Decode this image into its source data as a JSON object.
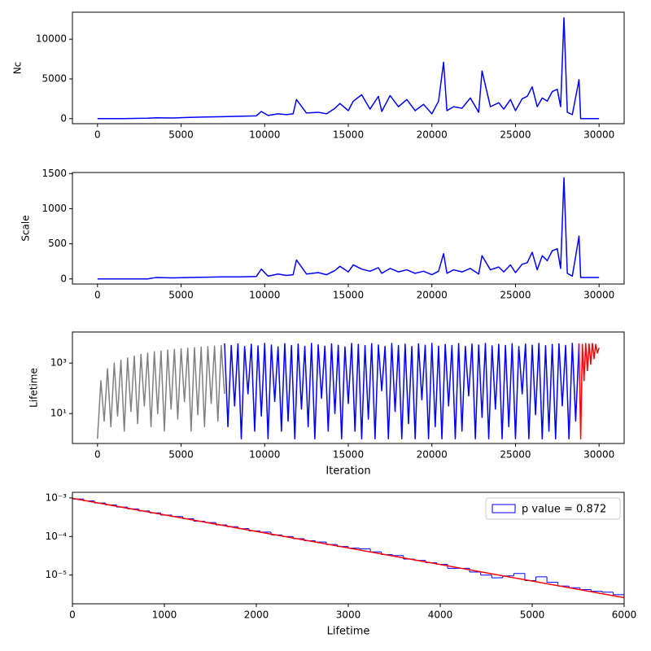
{
  "chart_data": [
    {
      "type": "line",
      "ylabel": "Nc",
      "x": [
        0,
        1500,
        3000,
        3500,
        4500,
        5500,
        6500,
        7500,
        8500,
        9500,
        9800,
        10200,
        10800,
        11300,
        11700,
        11900,
        12500,
        13200,
        13700,
        14200,
        14500,
        15000,
        15300,
        15800,
        16300,
        16800,
        17000,
        17500,
        18000,
        18500,
        19000,
        19500,
        20000,
        20400,
        20700,
        20900,
        21300,
        21800,
        22300,
        22800,
        23000,
        23500,
        24000,
        24300,
        24700,
        25000,
        25400,
        25700,
        26000,
        26300,
        26600,
        26900,
        27200,
        27500,
        27700,
        27900,
        28100,
        28400,
        28800,
        28900,
        29200,
        30000
      ],
      "series": [
        {
          "color": "#0000ff",
          "values": [
            0,
            0,
            50,
            100,
            80,
            150,
            200,
            250,
            300,
            350,
            900,
            400,
            600,
            500,
            600,
            2400,
            700,
            800,
            600,
            1300,
            1900,
            1000,
            2200,
            3000,
            1200,
            2800,
            900,
            2900,
            1500,
            2400,
            1000,
            1800,
            600,
            2200,
            7100,
            1000,
            1500,
            1300,
            2600,
            800,
            6000,
            1500,
            2000,
            1200,
            2400,
            1000,
            2500,
            2800,
            4000,
            1500,
            2600,
            2200,
            3400,
            3700,
            1500,
            12700,
            800,
            500,
            4900,
            0,
            0,
            0
          ]
        }
      ],
      "xlim": [
        -1500,
        31500
      ],
      "xticks": [
        0,
        5000,
        10000,
        15000,
        20000,
        25000,
        30000
      ],
      "ylim": [
        -640,
        13400
      ],
      "yticks": [
        0,
        5000,
        10000
      ]
    },
    {
      "type": "line",
      "ylabel": "Scale",
      "x": [
        0,
        1500,
        3000,
        3500,
        4500,
        5500,
        6500,
        7500,
        8500,
        9500,
        9800,
        10200,
        10800,
        11300,
        11700,
        11900,
        12500,
        13200,
        13700,
        14200,
        14500,
        15000,
        15300,
        15800,
        16300,
        16800,
        17000,
        17500,
        18000,
        18500,
        19000,
        19500,
        20000,
        20400,
        20700,
        20900,
        21300,
        21800,
        22300,
        22800,
        23000,
        23500,
        24000,
        24300,
        24700,
        25000,
        25400,
        25700,
        26000,
        26300,
        26600,
        26900,
        27200,
        27500,
        27700,
        27900,
        28100,
        28400,
        28800,
        28900,
        29200,
        30000
      ],
      "series": [
        {
          "color": "#0000ff",
          "values": [
            0,
            0,
            0,
            20,
            15,
            20,
            25,
            30,
            30,
            35,
            140,
            40,
            70,
            50,
            60,
            270,
            70,
            90,
            60,
            120,
            180,
            100,
            200,
            140,
            110,
            160,
            80,
            150,
            100,
            130,
            80,
            110,
            60,
            110,
            360,
            80,
            130,
            100,
            150,
            70,
            330,
            130,
            170,
            100,
            200,
            90,
            210,
            230,
            380,
            130,
            330,
            260,
            400,
            430,
            150,
            1440,
            80,
            40,
            610,
            20,
            20,
            20
          ]
        }
      ],
      "xlim": [
        -1500,
        31500
      ],
      "xticks": [
        0,
        5000,
        10000,
        15000,
        20000,
        25000,
        30000
      ],
      "ylim": [
        -72,
        1515
      ],
      "yticks": [
        0,
        500,
        1000,
        1500
      ]
    },
    {
      "type": "line",
      "ylabel": "Lifetime",
      "xlabel": "Iteration",
      "log_y": true,
      "series": [
        {
          "color": "#808080",
          "x": [
            0,
            200,
            400,
            600,
            800,
            1000,
            1200,
            1400,
            1600,
            1800,
            2000,
            2200,
            2400,
            2600,
            2800,
            3000,
            3200,
            3400,
            3600,
            3800,
            4000,
            4200,
            4400,
            4600,
            4800,
            5000,
            5200,
            5400,
            5600,
            5800,
            6000,
            6200,
            6400,
            6600,
            6800,
            7000,
            7200,
            7400,
            7600
          ],
          "values": [
            1,
            200,
            5,
            600,
            3,
            1000,
            8,
            1300,
            2,
            1600,
            12,
            1900,
            4,
            2200,
            20,
            2500,
            3,
            2800,
            10,
            3000,
            2,
            3300,
            15,
            3500,
            6,
            3700,
            30,
            3900,
            2,
            4100,
            9,
            4300,
            3,
            4500,
            25,
            4700,
            5,
            4900,
            60
          ]
        },
        {
          "color": "#0000ff",
          "x": [
            7600,
            7800,
            8000,
            8200,
            8400,
            8600,
            8800,
            9000,
            9200,
            9400,
            9600,
            9800,
            10000,
            10200,
            10400,
            10600,
            10800,
            11000,
            11200,
            11400,
            11600,
            11800,
            12000,
            12200,
            12400,
            12600,
            12800,
            13000,
            13200,
            13400,
            13600,
            13800,
            14000,
            14200,
            14400,
            14600,
            14800,
            15000,
            15200,
            15400,
            15600,
            15800,
            16000,
            16200,
            16400,
            16600,
            16800,
            17000,
            17200,
            17400,
            17600,
            17800,
            18000,
            18200,
            18400,
            18600,
            18800,
            19000,
            19200,
            19400,
            19600,
            19800,
            20000,
            20200,
            20400,
            20600,
            20800,
            21000,
            21200,
            21400,
            21600,
            21800,
            22000,
            22200,
            22400,
            22600,
            22800,
            23000,
            23200,
            23400,
            23600,
            23800,
            24000,
            24200,
            24400,
            24600,
            24800,
            25000,
            25200,
            25400,
            25600,
            25800,
            26000,
            26200,
            26400,
            26600,
            26800,
            27000,
            27200,
            27400,
            27600,
            27800,
            28000,
            28200,
            28400,
            28600,
            28800
          ],
          "values": [
            6000,
            3,
            5000,
            20,
            5800,
            1,
            4500,
            60,
            5600,
            2,
            4800,
            8,
            6000,
            1,
            5200,
            30,
            4400,
            2,
            5900,
            5,
            5000,
            1,
            5700,
            15,
            4600,
            3,
            6000,
            1,
            5300,
            40,
            4700,
            2,
            5800,
            10,
            5100,
            1,
            4400,
            25,
            6000,
            2,
            5500,
            1,
            4900,
            6,
            5900,
            1,
            5200,
            80,
            4600,
            1,
            6000,
            12,
            5000,
            1,
            5600,
            4,
            4500,
            1,
            5800,
            35,
            5100,
            1,
            6000,
            3,
            4700,
            1,
            5500,
            20,
            5000,
            1,
            5900,
            2,
            4600,
            50,
            5700,
            1,
            5200,
            7,
            6000,
            1,
            4800,
            15,
            5600,
            1,
            5000,
            3,
            5900,
            1,
            4500,
            60,
            5700,
            1,
            5100,
            9,
            6000,
            1,
            4900,
            2,
            5500,
            1,
            5800,
            20,
            5000,
            1,
            6000,
            5,
            5400
          ]
        },
        {
          "color": "#ff0000",
          "x": [
            28800,
            28900,
            29000,
            29100,
            29200,
            29300,
            29400,
            29500,
            29600,
            29700,
            29800,
            29900,
            30000
          ],
          "values": [
            6000,
            1,
            5500,
            200,
            6000,
            500,
            5800,
            900,
            6000,
            1500,
            5500,
            2500,
            4000
          ]
        }
      ],
      "xlim": [
        -1500,
        31500
      ],
      "xticks": [
        0,
        5000,
        10000,
        15000,
        20000,
        25000,
        30000
      ],
      "ylim": [
        0.65,
        17000
      ],
      "yticks": [
        {
          "value": 10,
          "label": "10¹"
        },
        {
          "value": 1000,
          "label": "10³"
        }
      ]
    },
    {
      "type": "histogram",
      "xlabel": "Lifetime",
      "log_y": true,
      "color": "#0000ff",
      "legend_label": "p value = 0.872",
      "legend": "upper right",
      "bins": [
        0,
        120,
        240,
        360,
        480,
        600,
        720,
        840,
        960,
        1080,
        1200,
        1320,
        1440,
        1560,
        1680,
        1800,
        1920,
        2040,
        2160,
        2280,
        2400,
        2520,
        2640,
        2760,
        2880,
        3000,
        3120,
        3240,
        3360,
        3480,
        3600,
        3720,
        3840,
        3960,
        4080,
        4200,
        4320,
        4440,
        4560,
        4680,
        4800,
        4920,
        5040,
        5160,
        5280,
        5400,
        5520,
        5640,
        5760,
        5880,
        6000
      ],
      "values": [
        0.00094,
        0.00084,
        0.00074,
        0.00066,
        0.00058,
        0.00052,
        0.00046,
        0.00041,
        0.00036,
        0.00033,
        0.00029,
        0.00025,
        0.00023,
        0.0002,
        0.00018,
        0.00016,
        0.00014,
        0.00013,
        0.00011,
        0.0001,
        8.8e-05,
        7.8e-05,
        7.2e-05,
        6.2e-05,
        5.5e-05,
        5e-05,
        4.8e-05,
        4e-05,
        3.4e-05,
        3.2e-05,
        2.6e-05,
        2.4e-05,
        2.1e-05,
        1.9e-05,
        1.5e-05,
        1.5e-05,
        1.2e-05,
        1e-05,
        8.5e-06,
        9.5e-06,
        1.1e-05,
        7.2e-06,
        9e-06,
        6.5e-06,
        5.2e-06,
        4.7e-06,
        4.2e-06,
        3.8e-06,
        3.6e-06,
        3.1e-06
      ],
      "fit_line": {
        "color": "#ff0000",
        "x": [
          0,
          6000
        ],
        "values": [
          0.00098,
          2.6e-06
        ]
      },
      "xlim": [
        0,
        6000
      ],
      "xticks": [
        0,
        1000,
        2000,
        3000,
        4000,
        5000,
        6000
      ],
      "ylim": [
        1.8e-06,
        0.0014
      ],
      "yticks": [
        {
          "value": 1e-05,
          "label": "10⁻⁵"
        },
        {
          "value": 0.0001,
          "label": "10⁻⁴"
        },
        {
          "value": 0.001,
          "label": "10⁻³"
        }
      ]
    }
  ]
}
